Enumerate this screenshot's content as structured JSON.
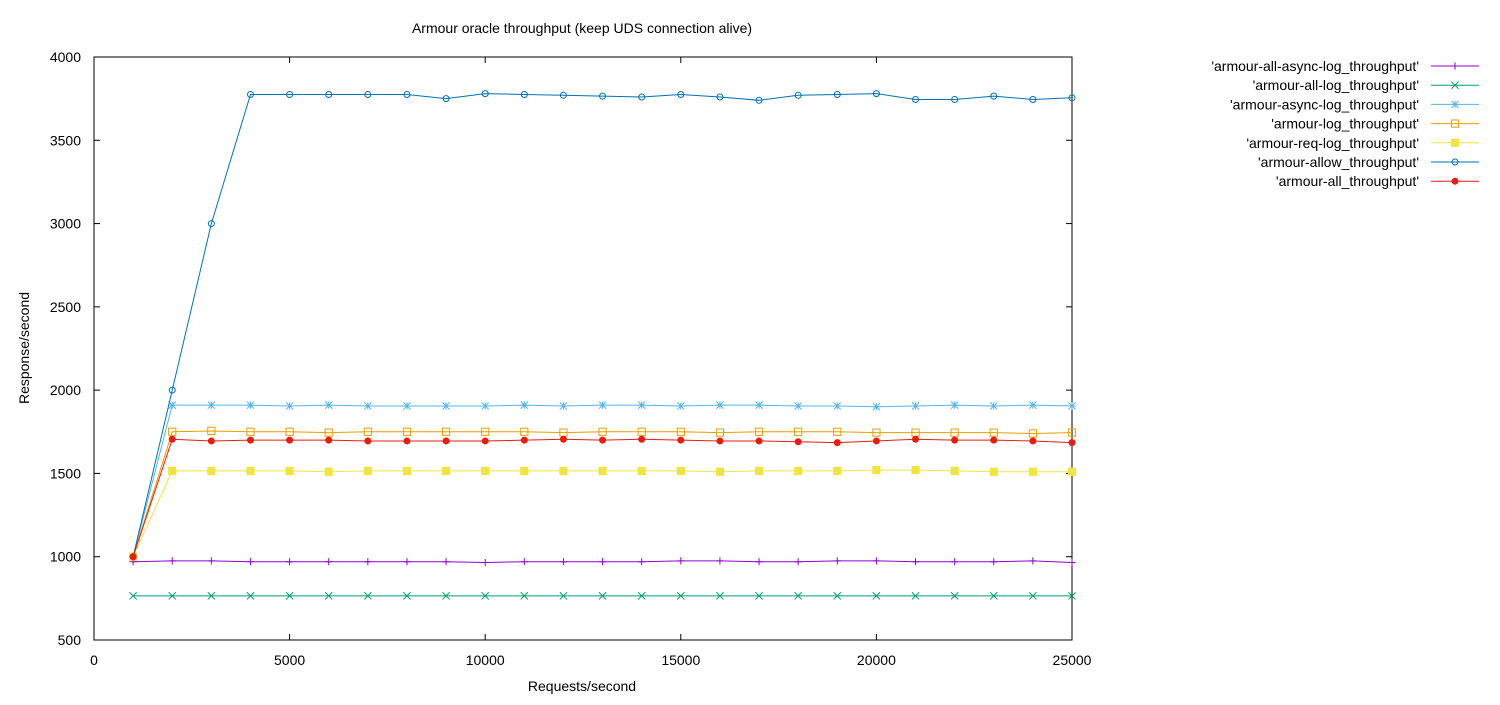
{
  "chart_data": {
    "type": "line",
    "title": "Armour oracle throughput (keep UDS connection alive)",
    "xlabel": "Requests/second",
    "ylabel": "Response/second",
    "xlim": [
      0,
      25000
    ],
    "ylim": [
      500,
      4000
    ],
    "x_ticks": [
      0,
      5000,
      10000,
      15000,
      20000,
      25000
    ],
    "x_tick_labels": [
      "0",
      "5000",
      "10000",
      "15000",
      "20000",
      "25000"
    ],
    "y_ticks": [
      500,
      1000,
      1500,
      2000,
      2500,
      3000,
      3500,
      4000
    ],
    "y_tick_labels": [
      "500",
      "1000",
      "1500",
      "2000",
      "2500",
      "3000",
      "3500",
      "4000"
    ],
    "grid": false,
    "legend_position": "outside-top-right",
    "x": [
      1000,
      2000,
      3000,
      4000,
      5000,
      6000,
      7000,
      8000,
      9000,
      10000,
      11000,
      12000,
      13000,
      14000,
      15000,
      16000,
      17000,
      18000,
      19000,
      20000,
      21000,
      22000,
      23000,
      24000,
      25000
    ],
    "series": [
      {
        "name": "'armour-all-async-log_throughput'",
        "color": "#9400d3",
        "marker": "plus",
        "values": [
          970,
          975,
          975,
          970,
          970,
          970,
          970,
          970,
          970,
          965,
          970,
          970,
          970,
          970,
          975,
          975,
          970,
          970,
          975,
          975,
          970,
          970,
          970,
          975,
          965
        ]
      },
      {
        "name": "'armour-all-log_throughput'",
        "color": "#009e73",
        "marker": "cross",
        "values": [
          765,
          765,
          765,
          765,
          765,
          765,
          765,
          765,
          765,
          765,
          765,
          765,
          765,
          765,
          765,
          765,
          765,
          765,
          765,
          765,
          765,
          765,
          765,
          765,
          765
        ]
      },
      {
        "name": "'armour-async-log_throughput'",
        "color": "#56b4e9",
        "marker": "star",
        "values": [
          1000,
          1910,
          1910,
          1910,
          1905,
          1910,
          1905,
          1905,
          1905,
          1905,
          1910,
          1905,
          1910,
          1910,
          1905,
          1910,
          1910,
          1905,
          1905,
          1900,
          1905,
          1910,
          1905,
          1910,
          1905
        ]
      },
      {
        "name": "'armour-log_throughput'",
        "color": "#e69f00",
        "marker": "open-square",
        "values": [
          1000,
          1750,
          1755,
          1750,
          1750,
          1745,
          1750,
          1750,
          1750,
          1750,
          1750,
          1745,
          1750,
          1750,
          1750,
          1745,
          1750,
          1750,
          1750,
          1745,
          1745,
          1745,
          1745,
          1740,
          1745
        ]
      },
      {
        "name": "'armour-req-log_throughput'",
        "color": "#f0e442",
        "marker": "filled-square",
        "values": [
          1000,
          1515,
          1515,
          1515,
          1515,
          1510,
          1515,
          1515,
          1515,
          1515,
          1515,
          1515,
          1515,
          1515,
          1515,
          1510,
          1515,
          1515,
          1515,
          1520,
          1520,
          1515,
          1510,
          1510,
          1510
        ]
      },
      {
        "name": "'armour-allow_throughput'",
        "color": "#0072b2",
        "marker": "open-circle",
        "values": [
          1000,
          2000,
          3000,
          3775,
          3775,
          3775,
          3775,
          3775,
          3750,
          3780,
          3775,
          3770,
          3765,
          3760,
          3775,
          3760,
          3740,
          3770,
          3775,
          3780,
          3745,
          3745,
          3765,
          3745,
          3755
        ]
      },
      {
        "name": "'armour-all_throughput'",
        "color": "#e51e10",
        "marker": "filled-circle",
        "values": [
          1000,
          1705,
          1695,
          1700,
          1700,
          1700,
          1695,
          1695,
          1695,
          1695,
          1700,
          1705,
          1700,
          1705,
          1700,
          1695,
          1695,
          1690,
          1685,
          1695,
          1705,
          1700,
          1700,
          1695,
          1685
        ]
      }
    ]
  }
}
